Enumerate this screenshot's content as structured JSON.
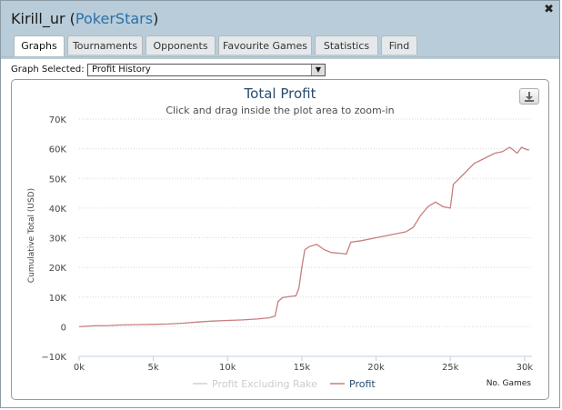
{
  "window": {
    "title_user": "Kirill_ur",
    "title_site": "PokerStars",
    "close_glyph": "✖"
  },
  "tabs": [
    {
      "label": "Graphs"
    },
    {
      "label": "Tournaments"
    },
    {
      "label": "Opponents"
    },
    {
      "label": "Favourite Games"
    },
    {
      "label": "Statistics"
    },
    {
      "label": "Find"
    }
  ],
  "graph_select": {
    "label": "Graph Selected:",
    "value": "Profit History"
  },
  "colors": {
    "profit": "#c77f7f",
    "profit_excluding_rake": "#cfcfcf",
    "grid": "#d9d9d9"
  },
  "chart_data": {
    "type": "line",
    "title": "Total Profit",
    "subtitle": "Click and drag inside the plot area to zoom-in",
    "ylabel": "Cumulative Total (USD)",
    "xlabel": "No. Games",
    "ylim": [
      -10000,
      70000
    ],
    "xlim": [
      0,
      30500
    ],
    "yticks": [
      {
        "v": 70000,
        "label": "70K"
      },
      {
        "v": 60000,
        "label": "60K"
      },
      {
        "v": 50000,
        "label": "50K"
      },
      {
        "v": 40000,
        "label": "40K"
      },
      {
        "v": 30000,
        "label": "30K"
      },
      {
        "v": 20000,
        "label": "20K"
      },
      {
        "v": 10000,
        "label": "10K"
      },
      {
        "v": 0,
        "label": "0"
      },
      {
        "v": -10000,
        "label": "−10K"
      }
    ],
    "xticks": [
      {
        "v": 0,
        "label": "0k"
      },
      {
        "v": 5000,
        "label": "5k"
      },
      {
        "v": 10000,
        "label": "10k"
      },
      {
        "v": 15000,
        "label": "15k"
      },
      {
        "v": 20000,
        "label": "20k"
      },
      {
        "v": 25000,
        "label": "25k"
      },
      {
        "v": 30000,
        "label": "30k"
      }
    ],
    "grid": true,
    "legend_position": "bottom",
    "series": [
      {
        "name": "Profit Excluding Rake",
        "values": []
      },
      {
        "name": "Profit",
        "points": [
          [
            0,
            0
          ],
          [
            1000,
            300
          ],
          [
            2000,
            400
          ],
          [
            3000,
            600
          ],
          [
            4000,
            700
          ],
          [
            5000,
            800
          ],
          [
            6000,
            900
          ],
          [
            7000,
            1200
          ],
          [
            8000,
            1600
          ],
          [
            9000,
            1900
          ],
          [
            10000,
            2100
          ],
          [
            11000,
            2300
          ],
          [
            12000,
            2600
          ],
          [
            12800,
            3000
          ],
          [
            13200,
            3600
          ],
          [
            13400,
            8500
          ],
          [
            13700,
            9800
          ],
          [
            14200,
            10200
          ],
          [
            14600,
            10400
          ],
          [
            14800,
            13000
          ],
          [
            15000,
            20000
          ],
          [
            15200,
            26000
          ],
          [
            15500,
            27000
          ],
          [
            16000,
            27800
          ],
          [
            16500,
            26000
          ],
          [
            17000,
            25000
          ],
          [
            17500,
            24800
          ],
          [
            18000,
            24500
          ],
          [
            18300,
            28500
          ],
          [
            19000,
            29000
          ],
          [
            20000,
            30000
          ],
          [
            21000,
            31000
          ],
          [
            22000,
            32000
          ],
          [
            22500,
            33500
          ],
          [
            23000,
            37500
          ],
          [
            23500,
            40500
          ],
          [
            24000,
            42000
          ],
          [
            24500,
            40500
          ],
          [
            25000,
            40000
          ],
          [
            25200,
            48000
          ],
          [
            25800,
            51000
          ],
          [
            26200,
            53000
          ],
          [
            26600,
            55000
          ],
          [
            27200,
            56500
          ],
          [
            28000,
            58500
          ],
          [
            28500,
            59000
          ],
          [
            29000,
            60500
          ],
          [
            29500,
            58500
          ],
          [
            29800,
            60500
          ],
          [
            30000,
            60000
          ],
          [
            30300,
            59500
          ]
        ]
      }
    ]
  }
}
